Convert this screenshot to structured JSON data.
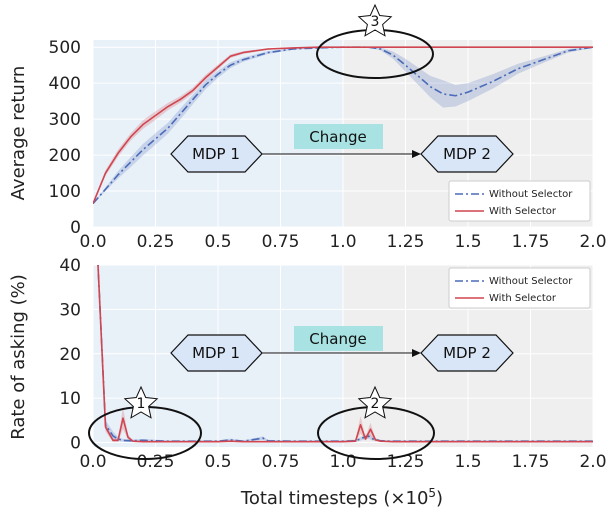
{
  "colors": {
    "without_selector": "#4a6bb8",
    "with_selector": "#d0454f",
    "region_before": "#e8f0f8",
    "region_after": "#efefef",
    "change_box": "#a8e2e2",
    "mdp_fill": "#d9e6f7"
  },
  "xlabel": "Total timesteps (×10",
  "xlabel_exp": "5",
  "xlabel_close": ")",
  "annotations": {
    "change": "Change",
    "mdp1": "MDP 1",
    "mdp2": "MDP 2",
    "star1": "1",
    "star2": "2",
    "star3": "3"
  },
  "chart_data": [
    {
      "type": "line",
      "ylabel": "Average return",
      "xlim": [
        0,
        2.0
      ],
      "ylim": [
        0,
        520
      ],
      "x_ticks": [
        "0.0",
        "0.25",
        "0.5",
        "0.75",
        "1.0",
        "1.25",
        "1.5",
        "1.75",
        "2.0"
      ],
      "x_tick_values": [
        0,
        0.25,
        0.5,
        0.75,
        1.0,
        1.25,
        1.5,
        1.75,
        2.0
      ],
      "y_ticks": [
        "0",
        "100",
        "200",
        "300",
        "400",
        "500"
      ],
      "y_tick_values": [
        0,
        100,
        200,
        300,
        400,
        500
      ],
      "legend_position": "bottom-right",
      "series": [
        {
          "name": "Without Selector",
          "style": "dashdot",
          "x": [
            0.0,
            0.05,
            0.1,
            0.15,
            0.2,
            0.25,
            0.3,
            0.35,
            0.4,
            0.45,
            0.5,
            0.55,
            0.6,
            0.7,
            0.8,
            0.9,
            1.0,
            1.05,
            1.1,
            1.15,
            1.2,
            1.25,
            1.3,
            1.35,
            1.4,
            1.45,
            1.5,
            1.6,
            1.7,
            1.8,
            1.9,
            2.0
          ],
          "values": [
            65,
            105,
            145,
            180,
            215,
            245,
            275,
            315,
            355,
            395,
            425,
            450,
            465,
            485,
            495,
            498,
            500,
            500,
            500,
            495,
            478,
            450,
            420,
            390,
            370,
            365,
            375,
            405,
            440,
            465,
            490,
            500
          ],
          "band": [
            0,
            5,
            10,
            14,
            16,
            16,
            15,
            15,
            13,
            12,
            10,
            8,
            6,
            4,
            2,
            1,
            0,
            0,
            0,
            4,
            10,
            18,
            24,
            30,
            38,
            30,
            25,
            20,
            14,
            9,
            5,
            2
          ]
        },
        {
          "name": "With Selector",
          "style": "solid",
          "x": [
            0.0,
            0.05,
            0.1,
            0.15,
            0.2,
            0.25,
            0.3,
            0.35,
            0.4,
            0.45,
            0.5,
            0.55,
            0.6,
            0.7,
            0.8,
            0.9,
            1.0,
            1.1,
            1.2,
            1.3,
            1.4,
            1.5,
            1.6,
            1.7,
            1.8,
            1.9,
            2.0
          ],
          "values": [
            65,
            150,
            205,
            250,
            285,
            310,
            335,
            355,
            380,
            415,
            445,
            475,
            485,
            495,
            498,
            500,
            500,
            500,
            500,
            500,
            500,
            500,
            500,
            500,
            500,
            500,
            500
          ],
          "band": [
            0,
            8,
            10,
            10,
            12,
            12,
            10,
            9,
            8,
            8,
            7,
            5,
            4,
            2,
            1,
            0,
            0,
            0,
            0,
            0,
            0,
            0,
            0,
            0,
            0,
            0,
            0
          ]
        }
      ]
    },
    {
      "type": "line",
      "ylabel": "Rate of asking (%)",
      "xlim": [
        0,
        2.0
      ],
      "ylim": [
        -1,
        40
      ],
      "x_ticks": [
        "0.0",
        "0.25",
        "0.5",
        "0.75",
        "1.0",
        "1.25",
        "1.5",
        "1.75",
        "2.0"
      ],
      "x_tick_values": [
        0,
        0.25,
        0.5,
        0.75,
        1.0,
        1.25,
        1.5,
        1.75,
        2.0
      ],
      "y_ticks": [
        "0",
        "10",
        "20",
        "30",
        "40"
      ],
      "y_tick_values": [
        0,
        10,
        20,
        30,
        40
      ],
      "legend_position": "top-right",
      "series": [
        {
          "name": "Without Selector",
          "style": "dashdot",
          "x": [
            0.0,
            0.02,
            0.05,
            0.08,
            0.1,
            0.12,
            0.15,
            0.2,
            0.3,
            0.5,
            0.55,
            0.6,
            0.68,
            0.7,
            0.8,
            1.0,
            1.05,
            1.1,
            1.12,
            1.15,
            1.2,
            1.3,
            1.5,
            1.7,
            1.9,
            2.0
          ],
          "values": [
            45,
            40,
            4,
            1.5,
            0.8,
            0.5,
            0.4,
            0.5,
            0.3,
            0.3,
            0.6,
            0.3,
            1.0,
            0.4,
            0.3,
            0.3,
            0.4,
            1.5,
            0.8,
            0.4,
            0.3,
            0.3,
            0.3,
            0.3,
            0.3,
            0.3
          ],
          "band": [
            0,
            0,
            1,
            1,
            0.5,
            0.3,
            0.3,
            0.3,
            0.2,
            0.2,
            0.3,
            0.2,
            0.4,
            0.2,
            0.2,
            0.2,
            0.3,
            0.6,
            0.4,
            0.2,
            0.2,
            0.2,
            0.2,
            0.2,
            0.2,
            0.2
          ]
        },
        {
          "name": "With Selector",
          "style": "solid",
          "x": [
            0.0,
            0.02,
            0.05,
            0.08,
            0.1,
            0.12,
            0.14,
            0.16,
            0.2,
            0.3,
            0.5,
            0.55,
            0.6,
            0.8,
            1.0,
            1.05,
            1.07,
            1.09,
            1.11,
            1.13,
            1.15,
            1.2,
            1.3,
            1.5,
            1.7,
            1.9,
            2.0
          ],
          "values": [
            45,
            40,
            3.5,
            0.5,
            0.5,
            5.5,
            1.2,
            0.3,
            0.2,
            0.2,
            0.2,
            0.3,
            0.2,
            0.2,
            0.2,
            0.3,
            4.0,
            0.8,
            3.0,
            0.6,
            0.3,
            0.2,
            0.2,
            0.2,
            0.2,
            0.2,
            0.2
          ],
          "band": [
            0,
            0,
            1,
            0.4,
            0.4,
            2.5,
            0.6,
            0.2,
            0.1,
            0.1,
            0.1,
            0.1,
            0.1,
            0.1,
            0.1,
            0.1,
            2.0,
            0.4,
            1.5,
            0.3,
            0.1,
            0.1,
            0.1,
            0.1,
            0.1,
            0.1,
            0.1
          ]
        }
      ]
    }
  ]
}
